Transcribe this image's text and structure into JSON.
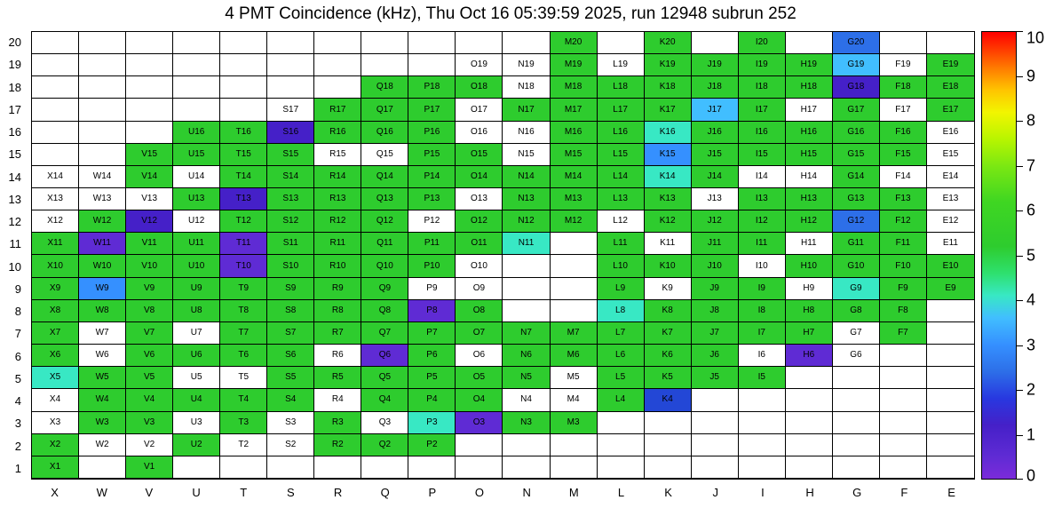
{
  "title": "4 PMT Coincidence (kHz), Thu Oct 16 05:39:59 2025, run 12948 subrun 252",
  "palette": {
    "G": "#2ECC2E",
    "C": "#38E8C4",
    "LB": "#41BEFF",
    "MB": "#3590FF",
    "B": "#2D6FE8",
    "DB": "#2347D6",
    "P": "#5F2BD4",
    "DP": "#4520C8",
    "W": "#FFFFFF"
  },
  "colorbar_stops": [
    [
      "0%",
      "#7B2BDA"
    ],
    [
      "5%",
      "#5F2BD4"
    ],
    [
      "12%",
      "#4520C8"
    ],
    [
      "18%",
      "#2838E0"
    ],
    [
      "24%",
      "#2D6FE8"
    ],
    [
      "30%",
      "#3590FF"
    ],
    [
      "36%",
      "#41BEFF"
    ],
    [
      "41%",
      "#38E8C4"
    ],
    [
      "46%",
      "#2EE06E"
    ],
    [
      "52%",
      "#2ECC2E"
    ],
    [
      "62%",
      "#3FD622"
    ],
    [
      "70%",
      "#7BE812"
    ],
    [
      "76%",
      "#B8F500"
    ],
    [
      "82%",
      "#F2F500"
    ],
    [
      "87%",
      "#FFC400"
    ],
    [
      "92%",
      "#FF7A00"
    ],
    [
      "96%",
      "#FF3C00"
    ],
    [
      "100%",
      "#FF0000"
    ]
  ],
  "chart_data": {
    "type": "heatmap",
    "title": "4 PMT Coincidence (kHz), Thu Oct 16 05:39:59 2025, run 12948 subrun 252",
    "xlabel": "",
    "ylabel": "",
    "x_categories": [
      "X",
      "W",
      "V",
      "U",
      "T",
      "S",
      "R",
      "Q",
      "P",
      "O",
      "N",
      "M",
      "L",
      "K",
      "J",
      "I",
      "H",
      "G",
      "F",
      "E"
    ],
    "y_categories": [
      20,
      19,
      18,
      17,
      16,
      15,
      14,
      13,
      12,
      11,
      10,
      9,
      8,
      7,
      6,
      5,
      4,
      3,
      2,
      1
    ],
    "colorbar": {
      "min": 0,
      "max": 10,
      "ticks": [
        0,
        1,
        2,
        3,
        4,
        5,
        6,
        7,
        8,
        9,
        10
      ],
      "position": "right"
    },
    "value_map": {
      "G": 5.5,
      "C": 4.1,
      "LB": 3.6,
      "MB": 3.0,
      "B": 2.4,
      "DB": 1.9,
      "DP": 1.2,
      "P": 0.7,
      "W": 0
    },
    "note": "Each cell labeled column+row (PMT id). Key = color bucket read from plot; null = no PMT drawn.",
    "rows": [
      [
        null,
        null,
        null,
        null,
        null,
        null,
        null,
        null,
        null,
        null,
        null,
        "G",
        null,
        "G",
        null,
        "G",
        null,
        "B",
        null,
        null
      ],
      [
        null,
        null,
        null,
        null,
        null,
        null,
        null,
        null,
        null,
        "W",
        "W",
        "G",
        "W",
        "G",
        "G",
        "G",
        "G",
        "LB",
        "W",
        "G"
      ],
      [
        null,
        null,
        null,
        null,
        null,
        null,
        null,
        "G",
        "G",
        "G",
        "W",
        "G",
        "G",
        "G",
        "G",
        "G",
        "G",
        "DP",
        "G",
        "G"
      ],
      [
        null,
        null,
        null,
        null,
        null,
        "W",
        "G",
        "G",
        "G",
        "W",
        "G",
        "G",
        "G",
        "G",
        "LB",
        "G",
        "W",
        "G",
        "W",
        "G"
      ],
      [
        null,
        null,
        null,
        "G",
        "G",
        "DP",
        "G",
        "G",
        "G",
        "W",
        "W",
        "G",
        "G",
        "C",
        "G",
        "G",
        "G",
        "G",
        "G",
        "W"
      ],
      [
        null,
        null,
        "G",
        "G",
        "G",
        "G",
        "W",
        "W",
        "G",
        "G",
        "W",
        "G",
        "G",
        "MB",
        "G",
        "G",
        "G",
        "G",
        "G",
        "W"
      ],
      [
        "W",
        "W",
        "G",
        "W",
        "G",
        "G",
        "G",
        "G",
        "G",
        "G",
        "G",
        "G",
        "G",
        "C",
        "G",
        "W",
        "W",
        "G",
        "W",
        "W"
      ],
      [
        "W",
        "W",
        "W",
        "G",
        "DP",
        "G",
        "G",
        "G",
        "G",
        "W",
        "G",
        "G",
        "G",
        "G",
        "W",
        "G",
        "G",
        "G",
        "G",
        "W"
      ],
      [
        "W",
        "G",
        "DP",
        "W",
        "G",
        "G",
        "G",
        "G",
        "W",
        "G",
        "G",
        "G",
        "W",
        "G",
        "G",
        "G",
        "G",
        "B",
        "G",
        "W"
      ],
      [
        "G",
        "P",
        "G",
        "G",
        "P",
        "G",
        "G",
        "G",
        "G",
        "G",
        "C",
        null,
        "G",
        "W",
        "G",
        "G",
        "W",
        "G",
        "G",
        "W"
      ],
      [
        "G",
        "G",
        "G",
        "G",
        "P",
        "G",
        "G",
        "G",
        "G",
        "W",
        null,
        null,
        "G",
        "G",
        "G",
        "W",
        "G",
        "G",
        "G",
        "G"
      ],
      [
        "G",
        "MB",
        "G",
        "G",
        "G",
        "G",
        "G",
        "G",
        "W",
        "W",
        null,
        null,
        "G",
        "W",
        "G",
        "G",
        "W",
        "C",
        "G",
        "G"
      ],
      [
        "G",
        "G",
        "G",
        "G",
        "G",
        "G",
        "G",
        "G",
        "P",
        "G",
        null,
        null,
        "C",
        "G",
        "G",
        "G",
        "G",
        "G",
        "G",
        null
      ],
      [
        "G",
        "W",
        "G",
        "W",
        "G",
        "G",
        "G",
        "G",
        "G",
        "G",
        "G",
        "G",
        "G",
        "G",
        "G",
        "G",
        "G",
        "W",
        "G",
        null
      ],
      [
        "G",
        "W",
        "G",
        "G",
        "G",
        "G",
        "W",
        "P",
        "G",
        "W",
        "G",
        "G",
        "G",
        "G",
        "G",
        "W",
        "P",
        "W",
        null,
        null
      ],
      [
        "C",
        "G",
        "G",
        "W",
        "W",
        "G",
        "G",
        "G",
        "G",
        "G",
        "G",
        "W",
        "G",
        "G",
        "G",
        "G",
        null,
        null,
        null,
        null
      ],
      [
        "W",
        "G",
        "G",
        "G",
        "G",
        "G",
        "W",
        "G",
        "G",
        "G",
        "W",
        "W",
        "G",
        "DB",
        null,
        null,
        null,
        null,
        null,
        null
      ],
      [
        "W",
        "G",
        "G",
        "W",
        "G",
        "W",
        "G",
        "W",
        "C",
        "P",
        "G",
        "G",
        null,
        null,
        null,
        null,
        null,
        null,
        null,
        null
      ],
      [
        "G",
        "W",
        "W",
        "G",
        "W",
        "W",
        "G",
        "G",
        "G",
        null,
        null,
        null,
        null,
        null,
        null,
        null,
        null,
        null,
        null,
        null
      ],
      [
        "G",
        null,
        "G",
        null,
        null,
        null,
        null,
        null,
        null,
        null,
        null,
        null,
        null,
        null,
        null,
        null,
        null,
        null,
        null,
        null
      ]
    ]
  }
}
